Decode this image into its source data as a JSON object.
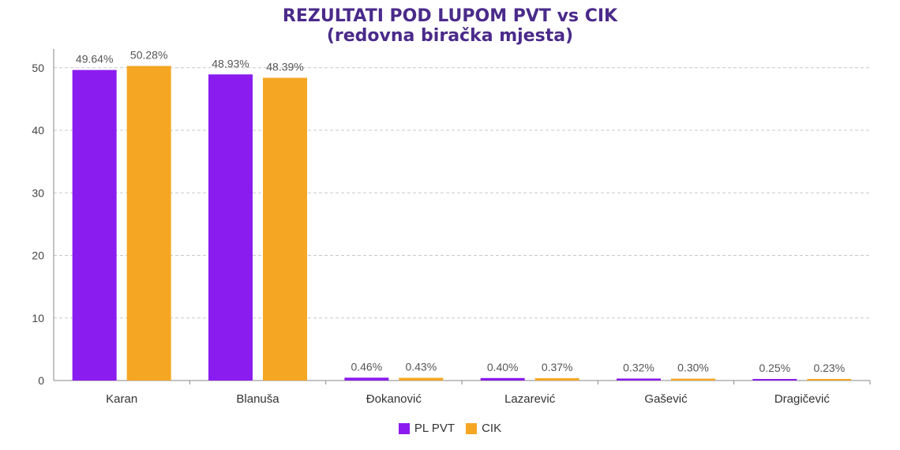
{
  "chart_data": {
    "type": "bar",
    "title": "REZULTATI POD LUPOM PVT vs CIK",
    "subtitle": "(redovna biračka mjesta)",
    "categories": [
      "Karan",
      "Blanuša",
      "Đokanović",
      "Lazarević",
      "Gašević",
      "Dragičević"
    ],
    "series": [
      {
        "name": "PL PVT",
        "color": "#8b1cf0",
        "values": [
          49.64,
          48.93,
          0.46,
          0.4,
          0.32,
          0.25
        ],
        "labels": [
          "49.64%",
          "48.93%",
          "0.46%",
          "0.40%",
          "0.32%",
          "0.25%"
        ]
      },
      {
        "name": "CIK",
        "color": "#f5a623",
        "values": [
          50.28,
          48.39,
          0.43,
          0.37,
          0.3,
          0.23
        ],
        "labels": [
          "50.28%",
          "48.39%",
          "0.43%",
          "0.37%",
          "0.30%",
          "0.23%"
        ]
      }
    ],
    "ylim": [
      0,
      53
    ],
    "yticks": [
      "0",
      "10",
      "20",
      "30",
      "40",
      "50"
    ],
    "grid": true,
    "legend": "bottom-center"
  }
}
